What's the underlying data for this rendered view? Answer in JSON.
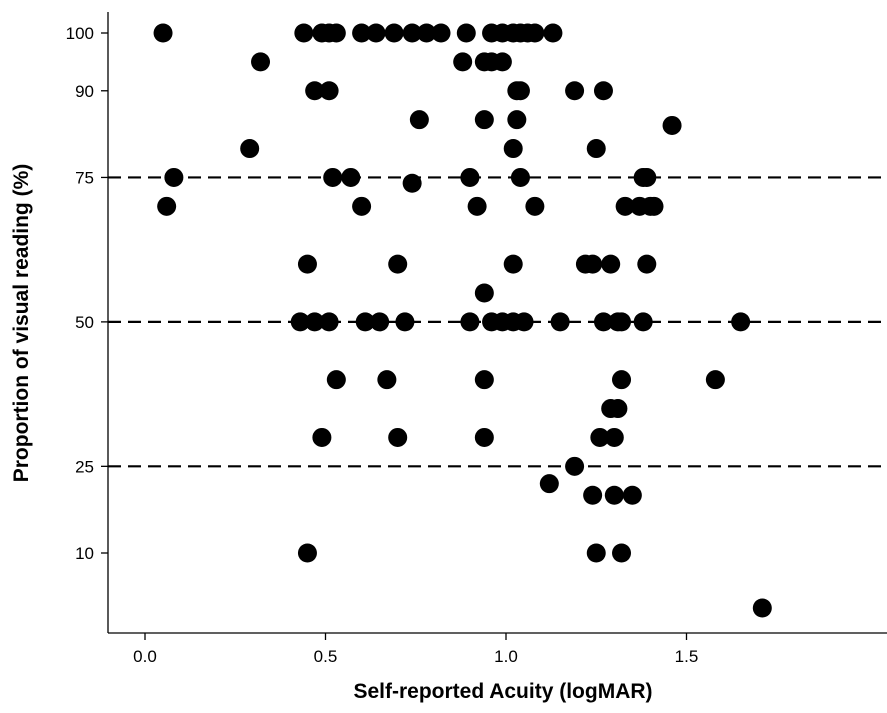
{
  "chart_data": {
    "type": "scatter",
    "title": "",
    "xlabel": "Self-reported Acuity (logMAR)",
    "ylabel": "Proportion of visual reading (%)",
    "xlim": [
      -0.08,
      2.0
    ],
    "ylim": [
      0,
      104
    ],
    "x_ticks": [
      0.0,
      0.5,
      1.0,
      1.5
    ],
    "x_tick_labels": [
      "0.0",
      "0.5",
      "1.0",
      "1.5"
    ],
    "y_ticks": [
      10,
      25,
      50,
      75,
      90,
      100
    ],
    "y_tick_labels": [
      "10",
      "25",
      "50",
      "75",
      "90",
      "100"
    ],
    "y_spacing": "linear positions, ticks at 10, 25, 50, 75, 90, 100",
    "reference_lines_y": [
      25,
      50,
      75
    ],
    "reference_line_style": "dashed",
    "grid": false,
    "marker_color": "#000000",
    "points": [
      {
        "x": 0.05,
        "y": 100
      },
      {
        "x": 0.44,
        "y": 100
      },
      {
        "x": 0.49,
        "y": 100
      },
      {
        "x": 0.51,
        "y": 100
      },
      {
        "x": 0.53,
        "y": 100
      },
      {
        "x": 0.6,
        "y": 100
      },
      {
        "x": 0.64,
        "y": 100
      },
      {
        "x": 0.69,
        "y": 100
      },
      {
        "x": 0.74,
        "y": 100
      },
      {
        "x": 0.78,
        "y": 100
      },
      {
        "x": 0.82,
        "y": 100
      },
      {
        "x": 0.89,
        "y": 100
      },
      {
        "x": 0.96,
        "y": 100
      },
      {
        "x": 0.99,
        "y": 100
      },
      {
        "x": 1.02,
        "y": 100
      },
      {
        "x": 1.04,
        "y": 100
      },
      {
        "x": 1.06,
        "y": 100
      },
      {
        "x": 1.08,
        "y": 100
      },
      {
        "x": 1.13,
        "y": 100
      },
      {
        "x": 0.32,
        "y": 95
      },
      {
        "x": 0.88,
        "y": 95
      },
      {
        "x": 0.94,
        "y": 95
      },
      {
        "x": 0.96,
        "y": 95
      },
      {
        "x": 0.99,
        "y": 95
      },
      {
        "x": 0.47,
        "y": 90
      },
      {
        "x": 0.51,
        "y": 90
      },
      {
        "x": 1.03,
        "y": 90
      },
      {
        "x": 1.04,
        "y": 90
      },
      {
        "x": 1.19,
        "y": 90
      },
      {
        "x": 1.27,
        "y": 90
      },
      {
        "x": 0.76,
        "y": 85
      },
      {
        "x": 0.94,
        "y": 85
      },
      {
        "x": 1.03,
        "y": 85
      },
      {
        "x": 1.46,
        "y": 84
      },
      {
        "x": 0.29,
        "y": 80
      },
      {
        "x": 1.02,
        "y": 80
      },
      {
        "x": 1.25,
        "y": 80
      },
      {
        "x": 0.08,
        "y": 75
      },
      {
        "x": 0.52,
        "y": 75
      },
      {
        "x": 0.57,
        "y": 75
      },
      {
        "x": 0.9,
        "y": 75
      },
      {
        "x": 1.04,
        "y": 75
      },
      {
        "x": 1.38,
        "y": 75
      },
      {
        "x": 1.39,
        "y": 75
      },
      {
        "x": 0.74,
        "y": 74
      },
      {
        "x": 0.06,
        "y": 70
      },
      {
        "x": 0.6,
        "y": 70
      },
      {
        "x": 0.92,
        "y": 70
      },
      {
        "x": 1.08,
        "y": 70
      },
      {
        "x": 1.33,
        "y": 70
      },
      {
        "x": 1.37,
        "y": 70
      },
      {
        "x": 1.4,
        "y": 70
      },
      {
        "x": 1.41,
        "y": 70
      },
      {
        "x": 0.45,
        "y": 60
      },
      {
        "x": 0.7,
        "y": 60
      },
      {
        "x": 1.02,
        "y": 60
      },
      {
        "x": 1.22,
        "y": 60
      },
      {
        "x": 1.24,
        "y": 60
      },
      {
        "x": 1.29,
        "y": 60
      },
      {
        "x": 1.39,
        "y": 60
      },
      {
        "x": 0.94,
        "y": 55
      },
      {
        "x": 0.43,
        "y": 50
      },
      {
        "x": 0.47,
        "y": 50
      },
      {
        "x": 0.51,
        "y": 50
      },
      {
        "x": 0.61,
        "y": 50
      },
      {
        "x": 0.65,
        "y": 50
      },
      {
        "x": 0.72,
        "y": 50
      },
      {
        "x": 0.9,
        "y": 50
      },
      {
        "x": 0.96,
        "y": 50
      },
      {
        "x": 0.99,
        "y": 50
      },
      {
        "x": 1.02,
        "y": 50
      },
      {
        "x": 1.05,
        "y": 50
      },
      {
        "x": 1.15,
        "y": 50
      },
      {
        "x": 1.27,
        "y": 50
      },
      {
        "x": 1.31,
        "y": 50
      },
      {
        "x": 1.32,
        "y": 50
      },
      {
        "x": 1.38,
        "y": 50
      },
      {
        "x": 1.65,
        "y": 50
      },
      {
        "x": 0.53,
        "y": 40
      },
      {
        "x": 0.67,
        "y": 40
      },
      {
        "x": 0.94,
        "y": 40
      },
      {
        "x": 1.32,
        "y": 40
      },
      {
        "x": 1.58,
        "y": 40
      },
      {
        "x": 1.29,
        "y": 35
      },
      {
        "x": 1.31,
        "y": 35
      },
      {
        "x": 0.49,
        "y": 30
      },
      {
        "x": 0.7,
        "y": 30
      },
      {
        "x": 0.94,
        "y": 30
      },
      {
        "x": 1.26,
        "y": 30
      },
      {
        "x": 1.3,
        "y": 30
      },
      {
        "x": 1.19,
        "y": 25
      },
      {
        "x": 1.12,
        "y": 22
      },
      {
        "x": 1.24,
        "y": 20
      },
      {
        "x": 1.3,
        "y": 20
      },
      {
        "x": 1.35,
        "y": 20
      },
      {
        "x": 0.45,
        "y": 10
      },
      {
        "x": 1.25,
        "y": 10
      },
      {
        "x": 1.32,
        "y": 10
      },
      {
        "x": 1.71,
        "y": 0.5
      }
    ]
  }
}
